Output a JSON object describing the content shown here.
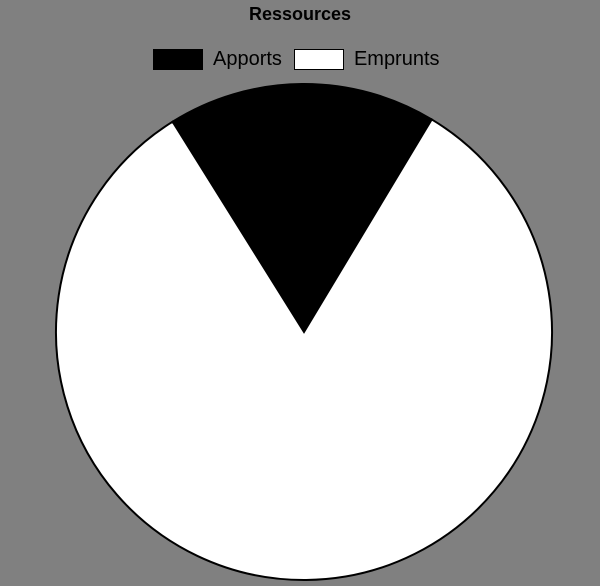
{
  "chart_data": {
    "type": "pie",
    "title": "Ressources",
    "legend_position": "top-center",
    "series": [
      {
        "name": "Apports",
        "value": 17.5,
        "color": "#000000"
      },
      {
        "name": "Emprunts",
        "value": 82.5,
        "color": "#ffffff"
      }
    ]
  },
  "colors": {
    "background": "#808080",
    "slice_border": "#000000"
  }
}
